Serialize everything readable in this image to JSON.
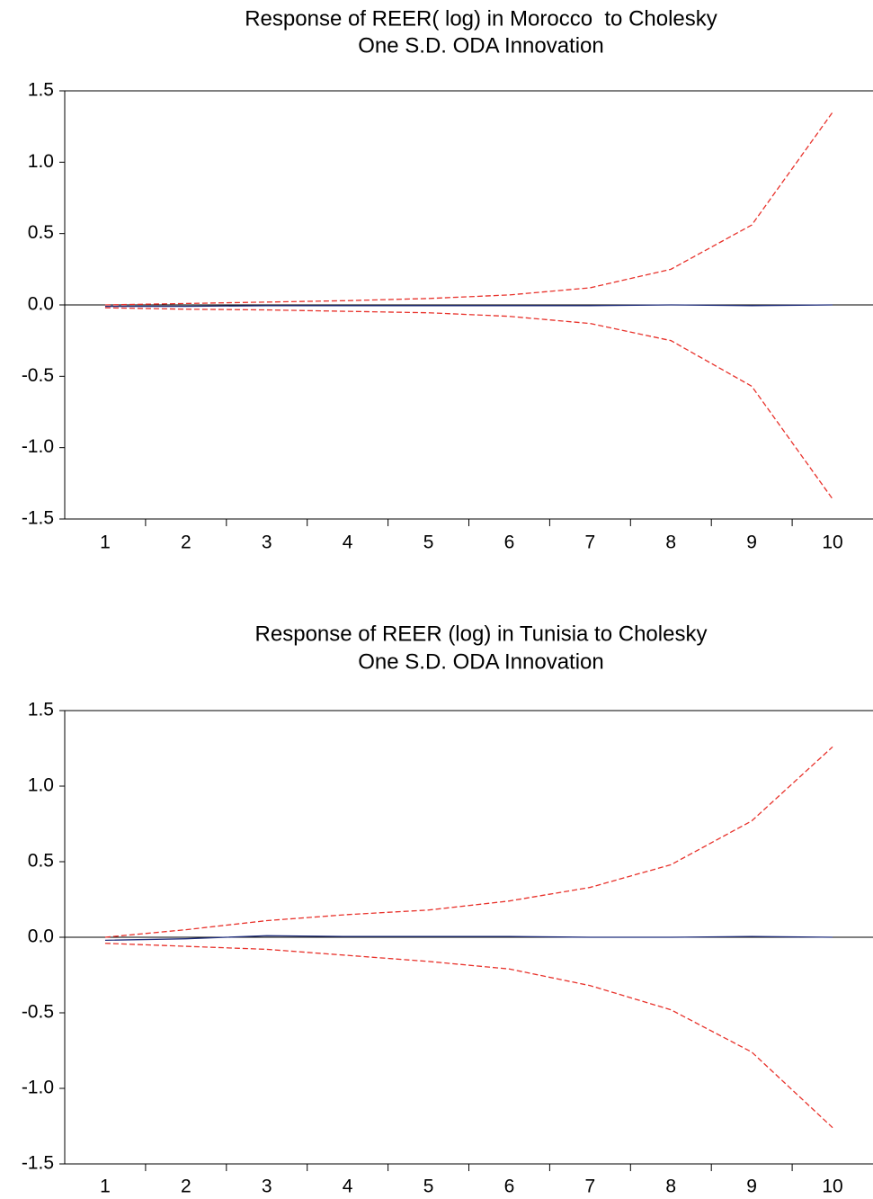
{
  "chart_data": [
    {
      "type": "line",
      "title": [
        "Response of REER( log) in Morocco  to Cholesky",
        "One S.D. ODA Innovation"
      ],
      "categories": [
        "1",
        "2",
        "3",
        "4",
        "5",
        "6",
        "7",
        "8",
        "9",
        "10"
      ],
      "series": [
        {
          "color": "#e8322b",
          "dashed": true,
          "values": [
            0.0,
            0.01,
            0.02,
            0.03,
            0.045,
            0.07,
            0.12,
            0.25,
            0.56,
            1.35
          ]
        },
        {
          "color": "#e8322b",
          "dashed": true,
          "values": [
            -0.02,
            -0.03,
            -0.035,
            -0.045,
            -0.055,
            -0.08,
            -0.13,
            -0.25,
            -0.57,
            -1.36
          ]
        },
        {
          "color": "#1f2d7a",
          "dashed": false,
          "values": [
            -0.01,
            -0.01,
            -0.005,
            -0.005,
            -0.005,
            -0.005,
            -0.005,
            0.0,
            -0.005,
            0.0
          ]
        }
      ],
      "ylim": [
        -1.5,
        1.5
      ],
      "yticks": [
        {
          "value": 1.5,
          "label": "1.5"
        },
        {
          "value": 1,
          "label": "1.0"
        },
        {
          "value": 0.5,
          "label": "0.5"
        },
        {
          "value": 0,
          "label": "0.0"
        },
        {
          "value": -0.5,
          "label": "-0.5"
        },
        {
          "value": -1,
          "label": "-1.0"
        },
        {
          "value": -1.5,
          "label": "-1.5"
        }
      ]
    },
    {
      "type": "line",
      "title": [
        "Response of REER (log) in Tunisia to Cholesky",
        "One S.D. ODA Innovation"
      ],
      "categories": [
        "1",
        "2",
        "3",
        "4",
        "5",
        "6",
        "7",
        "8",
        "9",
        "10"
      ],
      "series": [
        {
          "color": "#e8322b",
          "dashed": true,
          "values": [
            0.0,
            0.05,
            0.11,
            0.15,
            0.18,
            0.24,
            0.33,
            0.48,
            0.77,
            1.26
          ]
        },
        {
          "color": "#e8322b",
          "dashed": true,
          "values": [
            -0.04,
            -0.06,
            -0.08,
            -0.12,
            -0.16,
            -0.21,
            -0.32,
            -0.48,
            -0.76,
            -1.26
          ]
        },
        {
          "color": "#1f2d7a",
          "dashed": false,
          "values": [
            -0.02,
            -0.01,
            0.01,
            0.005,
            0.005,
            0.005,
            0.0,
            0.0,
            0.005,
            0.0
          ]
        }
      ],
      "ylim": [
        -1.5,
        1.5
      ],
      "yticks": [
        {
          "value": 1.5,
          "label": "1.5"
        },
        {
          "value": 1,
          "label": "1.0"
        },
        {
          "value": 0.5,
          "label": "0.5"
        },
        {
          "value": 0,
          "label": "0.0"
        },
        {
          "value": -0.5,
          "label": "-0.5"
        },
        {
          "value": -1,
          "label": "-1.0"
        },
        {
          "value": -1.5,
          "label": "-1.5"
        }
      ]
    }
  ]
}
